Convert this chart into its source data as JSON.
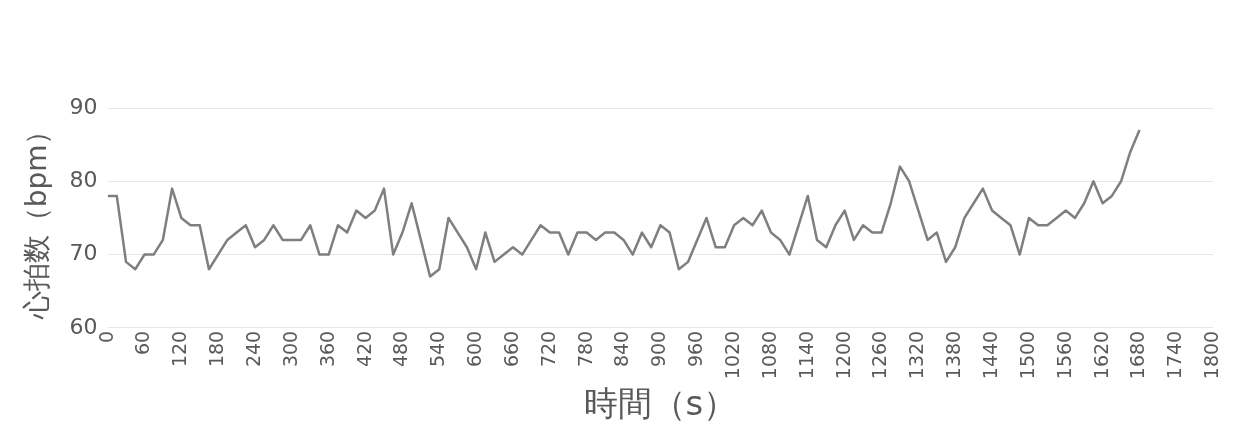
{
  "chart_data": {
    "type": "line",
    "xlabel": "時間（s）",
    "ylabel": "心拍数（bpm）",
    "x": [
      0,
      15,
      30,
      45,
      60,
      75,
      90,
      105,
      120,
      135,
      150,
      165,
      180,
      195,
      210,
      225,
      240,
      255,
      270,
      285,
      300,
      315,
      330,
      345,
      360,
      375,
      390,
      405,
      420,
      435,
      450,
      465,
      480,
      495,
      510,
      525,
      540,
      555,
      570,
      585,
      600,
      615,
      630,
      645,
      660,
      675,
      690,
      705,
      720,
      735,
      750,
      765,
      780,
      795,
      810,
      825,
      840,
      855,
      870,
      885,
      900,
      915,
      930,
      945,
      960,
      975,
      990,
      1005,
      1020,
      1035,
      1050,
      1065,
      1080,
      1095,
      1110,
      1125,
      1140,
      1155,
      1170,
      1185,
      1200,
      1215,
      1230,
      1245,
      1260,
      1275,
      1290,
      1305,
      1320,
      1335,
      1350,
      1365,
      1380,
      1395,
      1410,
      1425,
      1440,
      1455,
      1470,
      1485,
      1500,
      1515,
      1530,
      1545,
      1560,
      1575,
      1590,
      1605,
      1620,
      1635,
      1650,
      1665,
      1680
    ],
    "series": [
      {
        "color": "#7f7f7f",
        "values": [
          78,
          78,
          69,
          68,
          70,
          70,
          72,
          79,
          75,
          74,
          74,
          68,
          70,
          72,
          73,
          74,
          71,
          72,
          74,
          72,
          72,
          72,
          74,
          70,
          70,
          74,
          73,
          76,
          75,
          76,
          79,
          70,
          73,
          77,
          72,
          67,
          68,
          75,
          73,
          71,
          68,
          73,
          69,
          70,
          71,
          70,
          72,
          74,
          73,
          73,
          70,
          73,
          73,
          72,
          73,
          73,
          72,
          70,
          73,
          71,
          74,
          73,
          68,
          69,
          72,
          75,
          71,
          71,
          74,
          75,
          74,
          76,
          73,
          72,
          70,
          74,
          78,
          72,
          71,
          74,
          76,
          72,
          74,
          73,
          73,
          77,
          82,
          80,
          76,
          72,
          73,
          69,
          71,
          75,
          77,
          79,
          76,
          75,
          74,
          70,
          75,
          74,
          74,
          75,
          76,
          75,
          77,
          80,
          77,
          78,
          80,
          84,
          87
        ]
      }
    ],
    "xlim": [
      0,
      1800
    ],
    "xticks": [
      0,
      60,
      120,
      180,
      240,
      300,
      360,
      420,
      480,
      540,
      600,
      660,
      720,
      780,
      840,
      900,
      960,
      1020,
      1080,
      1140,
      1200,
      1260,
      1320,
      1380,
      1440,
      1500,
      1560,
      1620,
      1680,
      1740,
      1800
    ],
    "ylim": [
      60,
      90
    ],
    "yticks": [
      60,
      70,
      80,
      90
    ],
    "grid": "y",
    "legend": false,
    "marker": "none",
    "line_style": "solid"
  }
}
